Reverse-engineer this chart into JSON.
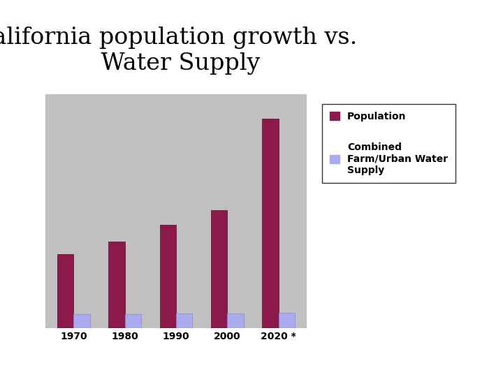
{
  "title": "California population growth vs.\n    Water Supply",
  "categories": [
    "1970",
    "1980",
    "1990",
    "2000",
    "2020 *"
  ],
  "population": [
    3.0,
    3.5,
    4.2,
    4.8,
    8.5
  ],
  "water_supply": [
    0.55,
    0.55,
    0.58,
    0.6,
    0.62
  ],
  "pop_color": "#8B1A4A",
  "water_color": "#AAAAEE",
  "bg_color": "#C0C0C0",
  "grid_color": "#FFFFFF",
  "title_fontsize": 24,
  "tick_fontsize": 10,
  "legend_fontsize": 10,
  "bar_width": 0.32,
  "ylim": [
    0,
    9.5
  ],
  "legend_label_pop": "Population",
  "legend_label_water": "Combined\nFarm/Urban Water\nSupply"
}
